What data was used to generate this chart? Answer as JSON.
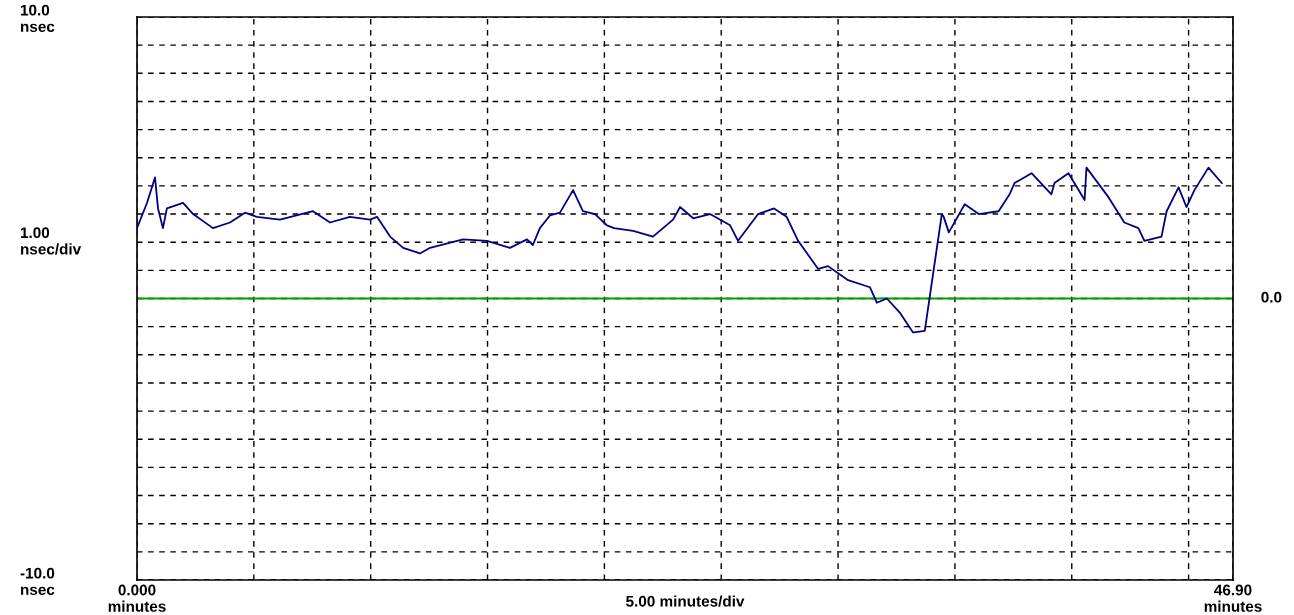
{
  "chart_data": {
    "type": "line",
    "xlabel": "5.00 minutes/div",
    "ylabel": "1.00\nnsec/div",
    "xlim": [
      0,
      46.9
    ],
    "ylim": [
      -10,
      10
    ],
    "xticks": [
      {
        "value": 0,
        "label": "0.000\nminutes"
      },
      {
        "value": 5,
        "label": null
      },
      {
        "value": 10,
        "label": null
      },
      {
        "value": 15,
        "label": null
      },
      {
        "value": 20,
        "label": null
      },
      {
        "value": 25,
        "label": null
      },
      {
        "value": 30,
        "label": null
      },
      {
        "value": 35,
        "label": null
      },
      {
        "value": 40,
        "label": null
      },
      {
        "value": 45,
        "label": null
      },
      {
        "value": 46.9,
        "label": "46.90\nminutes"
      }
    ],
    "yticks": [
      {
        "value": -10,
        "label": "-10.0\nnsec"
      },
      {
        "value": -9,
        "label": null
      },
      {
        "value": -8,
        "label": null
      },
      {
        "value": -7,
        "label": null
      },
      {
        "value": -6,
        "label": null
      },
      {
        "value": -5,
        "label": null
      },
      {
        "value": -4,
        "label": null
      },
      {
        "value": -3,
        "label": null
      },
      {
        "value": -2,
        "label": null
      },
      {
        "value": -1,
        "label": null
      },
      {
        "value": 0,
        "label": null
      },
      {
        "value": 1,
        "label": null
      },
      {
        "value": 2,
        "label": null
      },
      {
        "value": 3,
        "label": null
      },
      {
        "value": 4,
        "label": null
      },
      {
        "value": 5,
        "label": null
      },
      {
        "value": 6,
        "label": null
      },
      {
        "value": 7,
        "label": null
      },
      {
        "value": 8,
        "label": null
      },
      {
        "value": 9,
        "label": null
      },
      {
        "value": 10,
        "label": "10.0\nnsec"
      }
    ],
    "grid": true,
    "line_style": "solid",
    "marker": "none",
    "ref_lines": [
      {
        "axis": "y",
        "value": 0,
        "label": "0.0",
        "color": "#00a000"
      }
    ],
    "series": [
      {
        "color": "#000080",
        "x": [
          0,
          0.43,
          0.77,
          0.9,
          0.9,
          1.11,
          1.28,
          1.97,
          2.4,
          3.25,
          3.98,
          4.62,
          5.13,
          6.12,
          7.53,
          8.26,
          9.11,
          9.97,
          10.27,
          10.83,
          11.39,
          12.11,
          12.54,
          13.95,
          14.98,
          15.96,
          16.69,
          16.94,
          17.24,
          17.67,
          18.1,
          18.66,
          19.08,
          19.6,
          20.11,
          20.41,
          21.23,
          22.08,
          22.94,
          23.24,
          23.8,
          24.52,
          25.38,
          25.72,
          26.58,
          27.26,
          27.8,
          28.29,
          29.15,
          29.57,
          30.43,
          31.36,
          31.66,
          32.09,
          32.64,
          33.2,
          33.24,
          33.71,
          34.44,
          34.52,
          34.74,
          35.42,
          36.02,
          36.87,
          37.34,
          37.55,
          38.28,
          39.13,
          39.26,
          39.86,
          40.55,
          40.63,
          41.57,
          42.25,
          42.85,
          43.11,
          43.84,
          44.06,
          44.57,
          44.91,
          45.25,
          45.85,
          46.42
        ],
        "values": [
          2.5,
          3.4,
          4.3,
          3.2,
          3.2,
          2.5,
          3.2,
          3.4,
          3.0,
          2.5,
          2.7,
          3.05,
          2.9,
          2.8,
          3.1,
          2.7,
          2.9,
          2.8,
          2.9,
          2.2,
          1.8,
          1.6,
          1.8,
          2.1,
          2.05,
          1.8,
          2.1,
          1.9,
          2.5,
          2.95,
          3.05,
          3.85,
          3.1,
          3.0,
          2.6,
          2.5,
          2.4,
          2.2,
          2.8,
          3.25,
          2.85,
          3.0,
          2.6,
          2.05,
          3.0,
          3.2,
          2.9,
          2.05,
          1.05,
          1.15,
          0.65,
          0.4,
          -0.15,
          0.0,
          -0.5,
          -1.2,
          -1.2,
          -1.15,
          3.0,
          2.9,
          2.35,
          3.35,
          3.0,
          3.1,
          3.7,
          4.1,
          4.45,
          3.7,
          4.1,
          4.45,
          3.5,
          4.65,
          3.6,
          2.7,
          2.5,
          2.05,
          2.2,
          3.1,
          3.95,
          3.25,
          3.85,
          4.65,
          4.1
        ]
      }
    ]
  }
}
